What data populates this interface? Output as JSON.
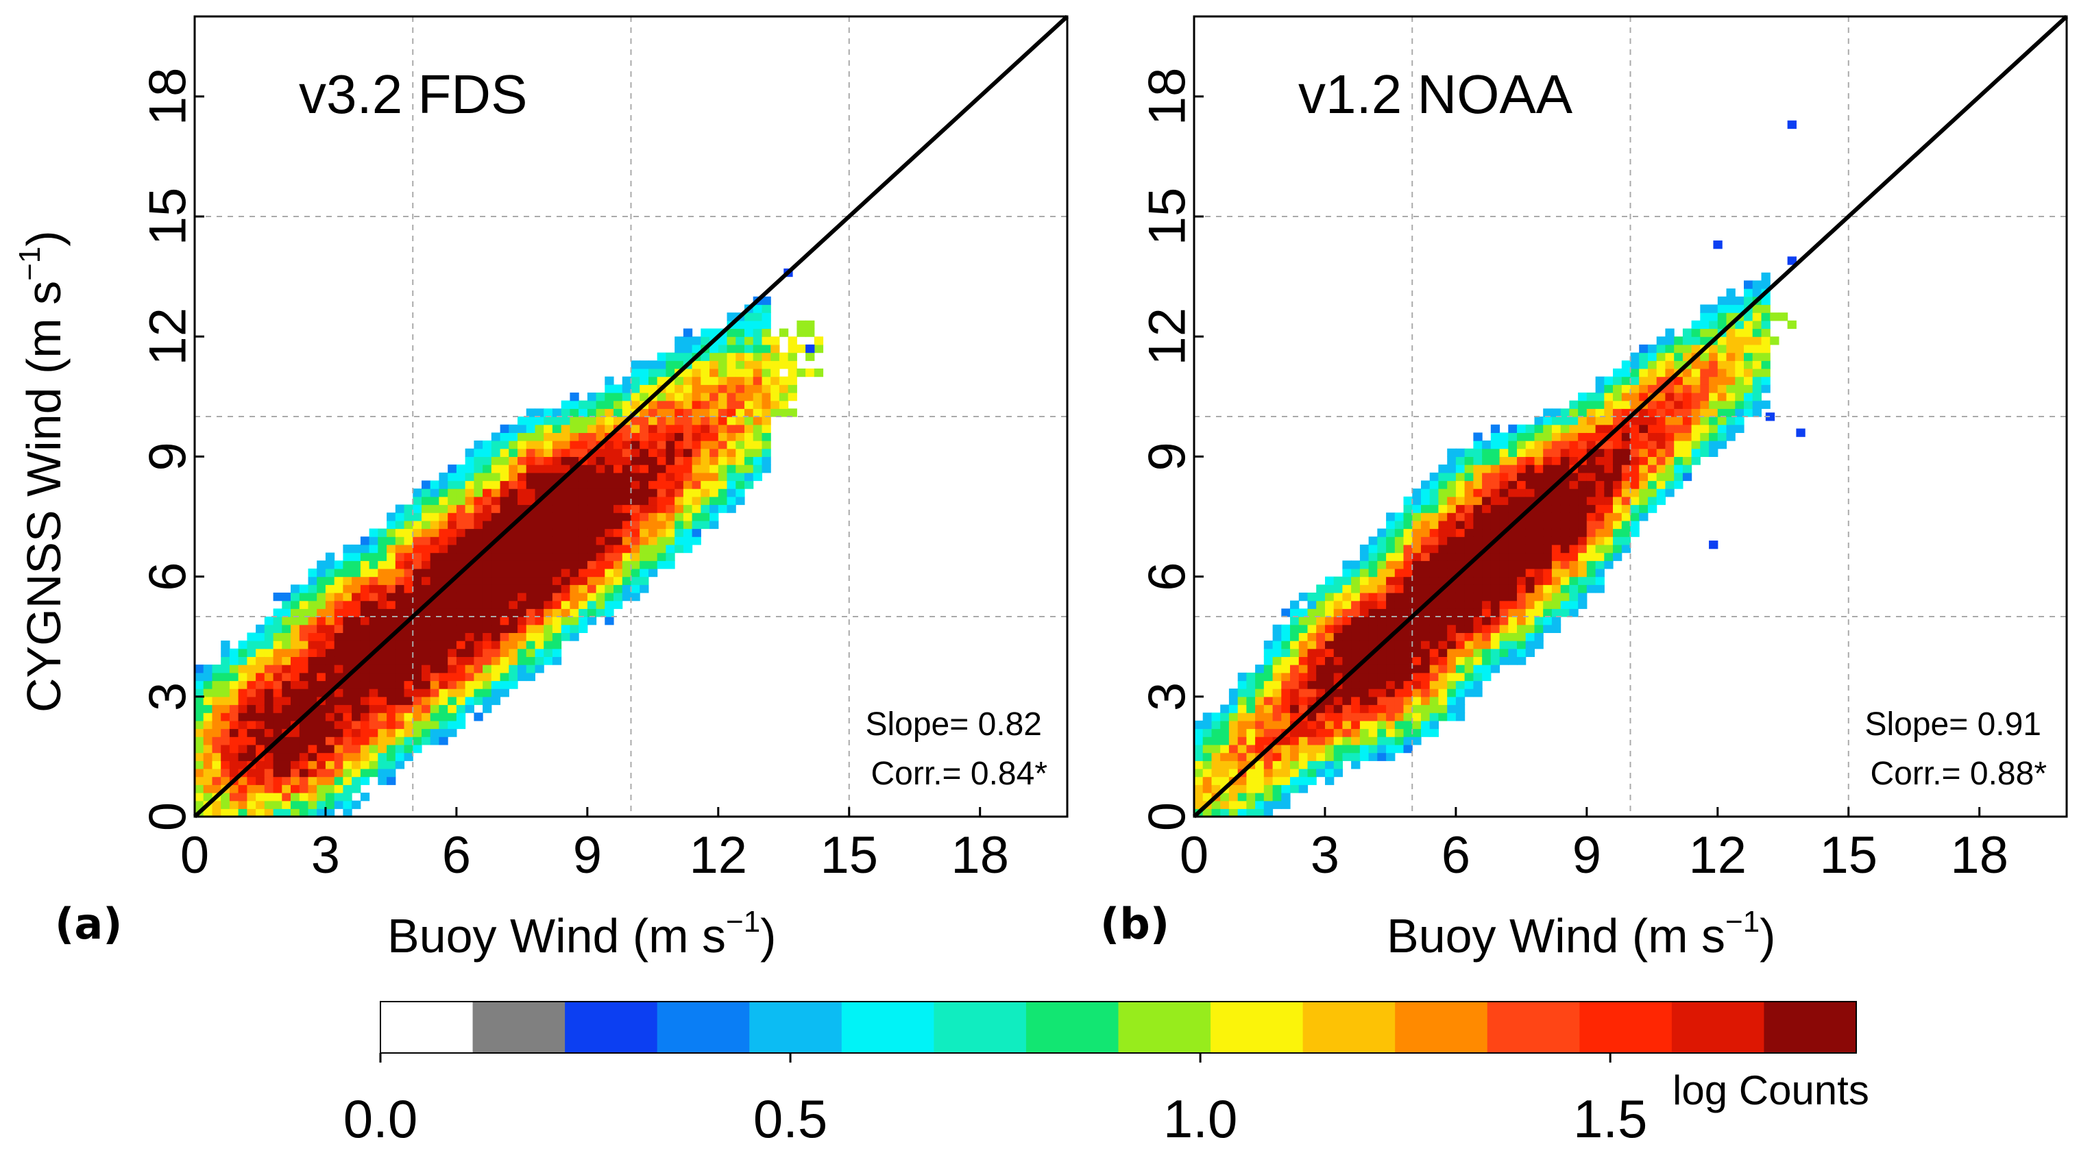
{
  "chart_data": [
    {
      "type": "heatmap",
      "title": "v3.2 FDS",
      "panel_label": "(a)",
      "xlabel": "Buoy Wind (m s",
      "ylabel": "CYGNSS Wind (m s",
      "unit_exponent": "−1",
      "ylabel_close": ")",
      "xlim": [
        0,
        20
      ],
      "ylim": [
        0,
        20
      ],
      "xticks": [
        "0",
        "3",
        "6",
        "9",
        "12",
        "15",
        "18"
      ],
      "yticks": [
        "0",
        "3",
        "6",
        "9",
        "12",
        "15",
        "18"
      ],
      "grid": true,
      "one_to_one_line": true,
      "stats": {
        "slope_text": "Slope= 0.82",
        "corr_text": "Corr.= 0.84*"
      },
      "slope": 0.82,
      "spread_across": 0.85,
      "spread_along": 4.3,
      "center": [
        6.5,
        6.2
      ],
      "peaks": [
        [
          2.0,
          2.2
        ],
        [
          4.0,
          4.2
        ],
        [
          6.3,
          6.1
        ],
        [
          8.4,
          7.8
        ]
      ],
      "outliers": [
        [
          13.6,
          13.6
        ],
        [
          14.1,
          11.7
        ]
      ]
    },
    {
      "type": "heatmap",
      "title": "v1.2 NOAA",
      "panel_label": "(b)",
      "xlabel": "Buoy Wind (m s",
      "unit_exponent": "−1",
      "ylabel_close": ")",
      "xlim": [
        0,
        20
      ],
      "ylim": [
        0,
        20
      ],
      "xticks": [
        "0",
        "3",
        "6",
        "9",
        "12",
        "15",
        "18"
      ],
      "yticks": [
        "0",
        "3",
        "6",
        "9",
        "12",
        "15",
        "18"
      ],
      "grid": true,
      "one_to_one_line": true,
      "stats": {
        "slope_text": "Slope= 0.91",
        "corr_text": "Corr.= 0.88*"
      },
      "slope": 0.91,
      "spread_across": 0.65,
      "spread_along": 4.2,
      "center": [
        6.5,
        6.1
      ],
      "peaks": [
        [
          4.2,
          3.9
        ],
        [
          6.3,
          6.0
        ],
        [
          7.6,
          7.4
        ]
      ],
      "outliers": [
        [
          13.7,
          17.3
        ],
        [
          13.7,
          13.9
        ],
        [
          12.0,
          14.3
        ],
        [
          13.9,
          9.6
        ],
        [
          13.2,
          10.0
        ],
        [
          11.9,
          6.8
        ]
      ]
    }
  ],
  "colorbar": {
    "title": "log Counts",
    "colors": [
      "#ffffff",
      "#808080",
      "#0c3ff2",
      "#0a7ef5",
      "#0cbcf3",
      "#00f3f7",
      "#10edc0",
      "#12e672",
      "#97ec1c",
      "#fbf40a",
      "#fdc205",
      "#ff8a00",
      "#ff4515",
      "#ff2602",
      "#dd1702",
      "#8b0806"
    ],
    "range": [
      0,
      1.8
    ],
    "tick_values": [
      0.0,
      0.5,
      1.0,
      1.5
    ],
    "tick_labels": [
      "0.0",
      "0.5",
      "1.0",
      "1.5"
    ]
  }
}
